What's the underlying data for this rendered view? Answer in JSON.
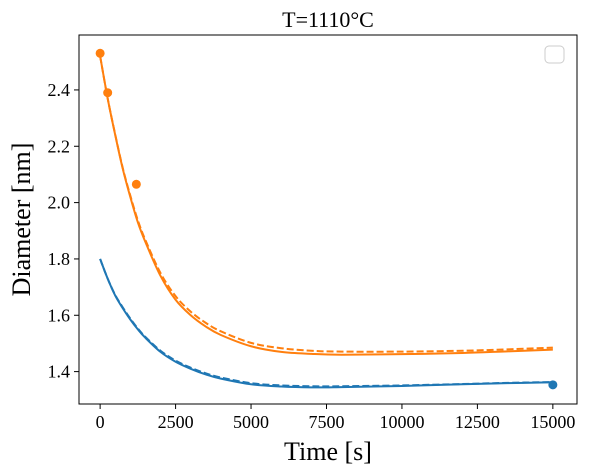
{
  "chart_data": {
    "type": "line",
    "title": "T=1110°C",
    "xlabel": "Time [s]",
    "ylabel": "Diameter [nm]",
    "xlim": [
      -700,
      15800
    ],
    "ylim": [
      1.285,
      2.595
    ],
    "xticks": [
      0,
      2500,
      5000,
      7500,
      10000,
      12500,
      15000
    ],
    "yticks": [
      1.4,
      1.6,
      1.8,
      2.0,
      2.2,
      2.4
    ],
    "ytick_labels": [
      "1.4",
      "1.6",
      "1.8",
      "2.0",
      "2.2",
      "2.4"
    ],
    "grid": false,
    "legend": "top-right (empty box)",
    "series": [
      {
        "color": "#1f77b4",
        "style": "solid",
        "x": [
          0,
          250,
          500,
          750,
          1000,
          1250,
          1500,
          2000,
          2500,
          3000,
          3500,
          4000,
          5000,
          6000,
          7000,
          8000,
          10000,
          12000,
          13500,
          15000
        ],
        "y": [
          1.8,
          1.73,
          1.67,
          1.625,
          1.585,
          1.55,
          1.52,
          1.47,
          1.435,
          1.41,
          1.39,
          1.375,
          1.355,
          1.347,
          1.344,
          1.345,
          1.349,
          1.355,
          1.359,
          1.362
        ]
      },
      {
        "color": "#1f77b4",
        "style": "dashed",
        "x": [
          0,
          250,
          500,
          750,
          1000,
          1250,
          1500,
          2000,
          2500,
          3000,
          3500,
          4000,
          5000,
          6000,
          7000,
          8000,
          10000,
          12000,
          13500,
          15000
        ],
        "y": [
          1.8,
          1.73,
          1.672,
          1.628,
          1.588,
          1.553,
          1.523,
          1.474,
          1.439,
          1.414,
          1.394,
          1.379,
          1.359,
          1.351,
          1.348,
          1.348,
          1.351,
          1.356,
          1.36,
          1.363
        ]
      },
      {
        "color": "#1f77b4",
        "style": "markers",
        "x": [
          15000
        ],
        "y": [
          1.353
        ]
      },
      {
        "color": "#ff7f0e",
        "style": "solid",
        "x": [
          0,
          250,
          500,
          750,
          1000,
          1250,
          1500,
          2000,
          2500,
          3000,
          3500,
          4000,
          5000,
          6000,
          7000,
          8000,
          10000,
          12000,
          13500,
          15000
        ],
        "y": [
          2.52,
          2.37,
          2.24,
          2.12,
          2.02,
          1.93,
          1.86,
          1.74,
          1.655,
          1.6,
          1.56,
          1.53,
          1.49,
          1.47,
          1.463,
          1.46,
          1.462,
          1.466,
          1.472,
          1.478
        ]
      },
      {
        "color": "#ff7f0e",
        "style": "dashed",
        "x": [
          0,
          250,
          500,
          750,
          1000,
          1250,
          1500,
          2000,
          2500,
          3000,
          3500,
          4000,
          5000,
          6000,
          7000,
          8000,
          10000,
          12000,
          13500,
          15000
        ],
        "y": [
          2.52,
          2.37,
          2.242,
          2.123,
          2.025,
          1.937,
          1.867,
          1.75,
          1.668,
          1.613,
          1.573,
          1.543,
          1.502,
          1.483,
          1.474,
          1.471,
          1.471,
          1.474,
          1.479,
          1.485
        ]
      },
      {
        "color": "#ff7f0e",
        "style": "markers",
        "x": [
          0,
          250,
          1200
        ],
        "y": [
          2.53,
          2.39,
          2.065
        ]
      }
    ]
  }
}
